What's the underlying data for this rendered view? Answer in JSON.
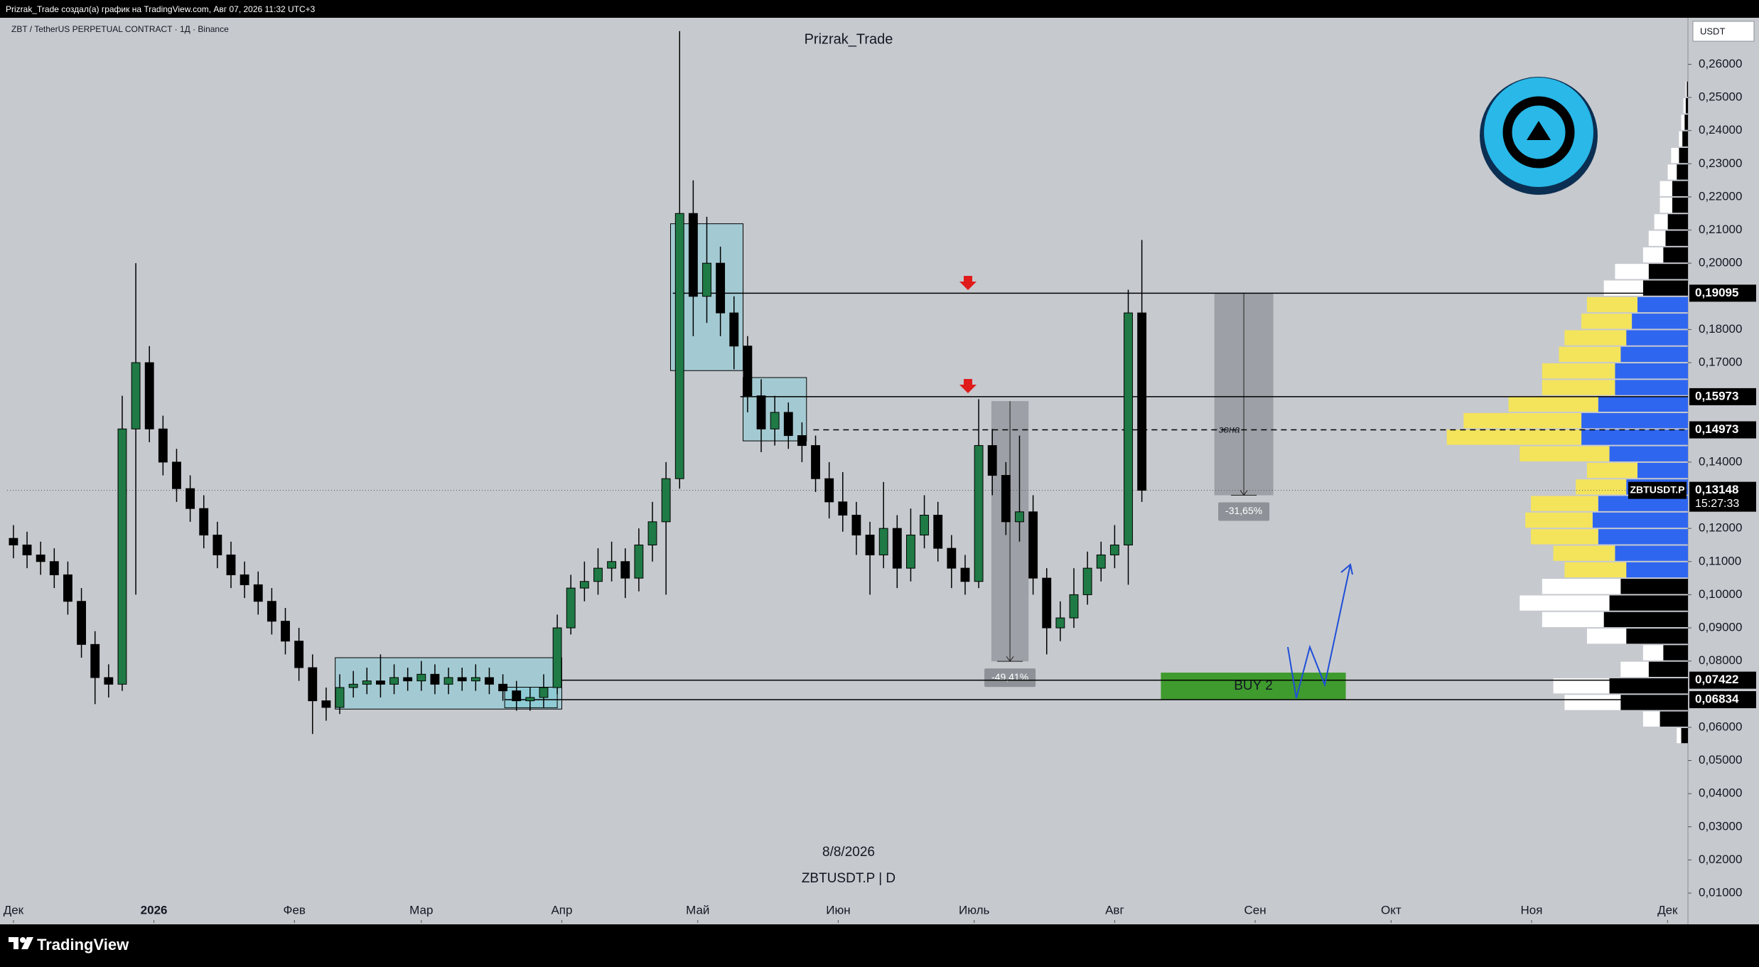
{
  "header": {
    "text": "Prizrak_Trade создал(а) график на TradingView.com, Авг 07, 2026 11:32 UTC+3"
  },
  "chart_data": {
    "type": "candlestick",
    "title": "Prizrak_Trade",
    "symbol_info": "ZBT / TetherUS PERPETUAL CONTRACT · 1Д · Binance",
    "currency": "USDT",
    "date_caption": "8/8/2026",
    "symbol_caption": "ZBTUSDT.P | D",
    "x": [
      0,
      3,
      6,
      9,
      12,
      15,
      18,
      21,
      24,
      27,
      30,
      33,
      36,
      39,
      42,
      45,
      48,
      51,
      54,
      57,
      60,
      63,
      66,
      69,
      72,
      75,
      78,
      81,
      84,
      87,
      90,
      93,
      96,
      99,
      102,
      105,
      108,
      111,
      114,
      117,
      120,
      123,
      126,
      129,
      132,
      135,
      138,
      141,
      144,
      147,
      150,
      153,
      156,
      159,
      162,
      165,
      168,
      171,
      174,
      177,
      180,
      183,
      186,
      189,
      192,
      195,
      198,
      201,
      204,
      207,
      210,
      213,
      216,
      219,
      222,
      225,
      228,
      231,
      234,
      237,
      240,
      243,
      246,
      249
    ],
    "open": [
      0.117,
      0.115,
      0.112,
      0.11,
      0.106,
      0.098,
      0.085,
      0.075,
      0.073,
      0.15,
      0.17,
      0.15,
      0.14,
      0.132,
      0.126,
      0.118,
      0.112,
      0.106,
      0.103,
      0.098,
      0.092,
      0.086,
      0.078,
      0.068,
      0.066,
      0.072,
      0.073,
      0.074,
      0.073,
      0.075,
      0.074,
      0.076,
      0.073,
      0.075,
      0.074,
      0.075,
      0.073,
      0.071,
      0.068,
      0.069,
      0.072,
      0.09,
      0.102,
      0.104,
      0.108,
      0.11,
      0.105,
      0.115,
      0.122,
      0.135,
      0.215,
      0.19,
      0.2,
      0.185,
      0.175,
      0.16,
      0.15,
      0.155,
      0.148,
      0.145,
      0.135,
      0.128,
      0.124,
      0.118,
      0.112,
      0.12,
      0.108,
      0.118,
      0.124,
      0.114,
      0.108,
      0.104,
      0.145,
      0.136,
      0.122,
      0.125,
      0.105,
      0.09,
      0.093,
      0.1,
      0.108,
      0.112,
      0.115,
      0.185
    ],
    "high": [
      0.121,
      0.119,
      0.116,
      0.114,
      0.11,
      0.102,
      0.089,
      0.079,
      0.16,
      0.2,
      0.175,
      0.154,
      0.144,
      0.136,
      0.13,
      0.122,
      0.116,
      0.11,
      0.107,
      0.102,
      0.096,
      0.09,
      0.082,
      0.072,
      0.076,
      0.077,
      0.078,
      0.082,
      0.079,
      0.078,
      0.08,
      0.079,
      0.078,
      0.078,
      0.079,
      0.078,
      0.076,
      0.074,
      0.072,
      0.076,
      0.094,
      0.106,
      0.11,
      0.114,
      0.116,
      0.114,
      0.12,
      0.128,
      0.14,
      0.27,
      0.225,
      0.214,
      0.205,
      0.19,
      0.178,
      0.165,
      0.16,
      0.158,
      0.152,
      0.148,
      0.14,
      0.137,
      0.128,
      0.122,
      0.134,
      0.124,
      0.126,
      0.13,
      0.128,
      0.118,
      0.112,
      0.159,
      0.15,
      0.14,
      0.148,
      0.13,
      0.108,
      0.098,
      0.108,
      0.113,
      0.116,
      0.121,
      0.192,
      0.207
    ],
    "low": [
      0.111,
      0.108,
      0.106,
      0.102,
      0.094,
      0.081,
      0.067,
      0.069,
      0.071,
      0.1,
      0.146,
      0.136,
      0.128,
      0.122,
      0.114,
      0.108,
      0.102,
      0.099,
      0.094,
      0.088,
      0.082,
      0.074,
      0.058,
      0.062,
      0.064,
      0.069,
      0.07,
      0.069,
      0.07,
      0.071,
      0.071,
      0.07,
      0.07,
      0.071,
      0.071,
      0.07,
      0.068,
      0.065,
      0.065,
      0.066,
      0.07,
      0.088,
      0.098,
      0.1,
      0.104,
      0.099,
      0.101,
      0.11,
      0.1,
      0.132,
      0.178,
      0.182,
      0.178,
      0.168,
      0.155,
      0.143,
      0.145,
      0.144,
      0.14,
      0.131,
      0.123,
      0.119,
      0.112,
      0.1,
      0.108,
      0.102,
      0.104,
      0.114,
      0.11,
      0.102,
      0.1,
      0.102,
      0.13,
      0.118,
      0.116,
      0.1,
      0.082,
      0.086,
      0.09,
      0.097,
      0.104,
      0.108,
      0.103,
      0.128
    ],
    "close": [
      0.115,
      0.112,
      0.11,
      0.106,
      0.098,
      0.085,
      0.075,
      0.073,
      0.15,
      0.17,
      0.15,
      0.14,
      0.132,
      0.126,
      0.118,
      0.112,
      0.106,
      0.103,
      0.098,
      0.092,
      0.086,
      0.078,
      0.068,
      0.066,
      0.072,
      0.073,
      0.074,
      0.073,
      0.075,
      0.074,
      0.076,
      0.073,
      0.075,
      0.074,
      0.075,
      0.073,
      0.071,
      0.068,
      0.069,
      0.072,
      0.09,
      0.102,
      0.104,
      0.108,
      0.11,
      0.105,
      0.115,
      0.122,
      0.135,
      0.215,
      0.19,
      0.2,
      0.185,
      0.175,
      0.16,
      0.15,
      0.155,
      0.148,
      0.145,
      0.135,
      0.128,
      0.124,
      0.118,
      0.112,
      0.12,
      0.108,
      0.118,
      0.124,
      0.114,
      0.108,
      0.104,
      0.145,
      0.136,
      0.122,
      0.125,
      0.105,
      0.09,
      0.093,
      0.1,
      0.108,
      0.112,
      0.115,
      0.185,
      0.1315
    ],
    "up_color": "#1f7a45",
    "down_color": "#000000",
    "xlim": [
      -1.4,
      369.5
    ],
    "xticks": [
      {
        "value": 0,
        "label": "Дек"
      },
      {
        "value": 31,
        "label": "2026"
      },
      {
        "value": 62,
        "label": "Фев"
      },
      {
        "value": 90,
        "label": "Мар"
      },
      {
        "value": 121,
        "label": "Апр"
      },
      {
        "value": 151,
        "label": "Май"
      },
      {
        "value": 182,
        "label": "Июн"
      },
      {
        "value": 212,
        "label": "Июль"
      },
      {
        "value": 243,
        "label": "Авг"
      },
      {
        "value": 274,
        "label": "Сен"
      },
      {
        "value": 304,
        "label": "Окт"
      },
      {
        "value": 335,
        "label": "Ноя"
      },
      {
        "value": 365,
        "label": "Дек"
      }
    ],
    "ylim": [
      0.001,
      0.2736
    ],
    "yticks": [
      {
        "value": 0.26,
        "label": "0,26000"
      },
      {
        "value": 0.25,
        "label": "0,25000"
      },
      {
        "value": 0.24,
        "label": "0,24000"
      },
      {
        "value": 0.23,
        "label": "0,23000"
      },
      {
        "value": 0.22,
        "label": "0,22000"
      },
      {
        "value": 0.21,
        "label": "0,21000"
      },
      {
        "value": 0.2,
        "label": "0,20000"
      },
      {
        "value": 0.18,
        "label": "0,18000"
      },
      {
        "value": 0.17,
        "label": "0,17000"
      },
      {
        "value": 0.14,
        "label": "0,14000"
      },
      {
        "value": 0.12,
        "label": "0,12000"
      },
      {
        "value": 0.11,
        "label": "0,11000"
      },
      {
        "value": 0.1,
        "label": "0,10000"
      },
      {
        "value": 0.09,
        "label": "0,09000"
      },
      {
        "value": 0.08,
        "label": "0,08000"
      },
      {
        "value": 0.06,
        "label": "0,06000"
      },
      {
        "value": 0.05,
        "label": "0,05000"
      },
      {
        "value": 0.04,
        "label": "0,04000"
      },
      {
        "value": 0.03,
        "label": "0,03000"
      },
      {
        "value": 0.02,
        "label": "0,02000"
      },
      {
        "value": 0.01,
        "label": "0,01000"
      }
    ],
    "levels": [
      {
        "value": 0.19095,
        "label": "0,19095",
        "x_start": 145.5,
        "dashed": false
      },
      {
        "value": 0.15973,
        "label": "0,15973",
        "x_start": 160.4,
        "dashed": false
      },
      {
        "value": 0.14973,
        "label": "0,14973",
        "x_start": 176.5,
        "dashed": true
      },
      {
        "value": 0.07422,
        "label": "0,07422",
        "x_start": 120.8,
        "dashed": false
      },
      {
        "value": 0.06834,
        "label": "0,06834",
        "x_start": 108.4,
        "dashed": false
      }
    ],
    "last_price": {
      "symbol": "ZBTUSDT.P",
      "value": 0.13148,
      "label": "0,13148",
      "countdown": "15:27:33"
    },
    "boxes": [
      {
        "x": [
          71,
          121
        ],
        "y": [
          0.0655,
          0.081
        ]
      },
      {
        "x": [
          108.4,
          120
        ],
        "y": [
          0.0659,
          0.0721
        ]
      },
      {
        "x": [
          145,
          161
        ],
        "y": [
          0.1676,
          0.2119
        ]
      },
      {
        "x": [
          161,
          175
        ],
        "y": [
          0.1464,
          0.1655
        ]
      }
    ],
    "measures": [
      {
        "x": [
          215.8,
          224
        ],
        "y": [
          0.0799,
          0.1584
        ],
        "label": "-49,41%"
      },
      {
        "x": [
          265,
          278
        ],
        "y": [
          0.13,
          0.1908
        ],
        "label": "-31,65%"
      }
    ],
    "buy_zone": {
      "x": [
        253.2,
        294
      ],
      "y": [
        0.0683,
        0.0765
      ],
      "label": "BUY 2",
      "color": "#3f9b2e"
    },
    "zone_label": {
      "text": "зона",
      "x": 266,
      "y": 0.1497
    },
    "volume_profile": {
      "bins": [
        0.055,
        0.06,
        0.065,
        0.07,
        0.075,
        0.08,
        0.085,
        0.09,
        0.095,
        0.1,
        0.105,
        0.11,
        0.115,
        0.12,
        0.125,
        0.13,
        0.135,
        0.14,
        0.145,
        0.15,
        0.155,
        0.16,
        0.165,
        0.17,
        0.175,
        0.18,
        0.185,
        0.19,
        0.195,
        0.2,
        0.205,
        0.21,
        0.215,
        0.22,
        0.225,
        0.23,
        0.235,
        0.24,
        0.245,
        0.25,
        0.255
      ],
      "buy": [
        6,
        25,
        60,
        70,
        35,
        22,
        55,
        75,
        70,
        60,
        55,
        65,
        80,
        85,
        80,
        55,
        45,
        70,
        95,
        95,
        80,
        65,
        65,
        60,
        55,
        50,
        45,
        40,
        35,
        22,
        20,
        18,
        14,
        14,
        10,
        8,
        5,
        3,
        2,
        1
      ],
      "sell": [
        4,
        15,
        50,
        50,
        25,
        18,
        35,
        55,
        80,
        70,
        55,
        55,
        60,
        60,
        60,
        45,
        45,
        80,
        120,
        105,
        80,
        65,
        65,
        55,
        55,
        45,
        45,
        35,
        30,
        18,
        15,
        12,
        11,
        11,
        8,
        7,
        3,
        3,
        2,
        1
      ],
      "value_area": [
        0.103,
        0.191
      ],
      "colors": {
        "buy": "#2f66f0",
        "sell": "#f4e45c",
        "buy_outside": "#000000",
        "sell_outside": "#ffffff"
      }
    }
  },
  "footer": {
    "brand": "TradingView"
  }
}
